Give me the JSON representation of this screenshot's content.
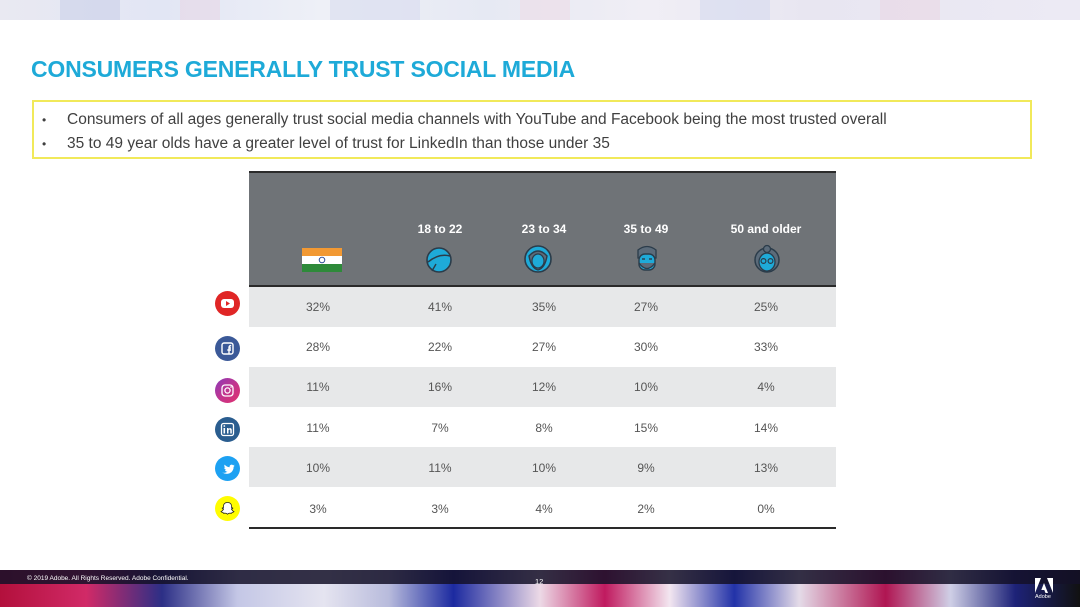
{
  "title": "CONSUMERS GENERALLY TRUST SOCIAL MEDIA",
  "bullets": [
    "Consumers of all ages generally trust social media channels with YouTube and Facebook being the most trusted overall",
    "35 to 49 year olds have a greater level of trust for LinkedIn than those under 35"
  ],
  "bullet_symbol": "•",
  "table": {
    "columns": [
      "18 to 22",
      "23 to 34",
      "35 to 49",
      "50 and older"
    ],
    "first_column_icon": "india-flag-icon",
    "column_icons": [
      "young-person-icon",
      "woman-icon",
      "bearded-man-icon",
      "older-person-icon"
    ],
    "rows": [
      {
        "platform_icon": "youtube-icon",
        "color": "#e02626",
        "values": [
          "32%",
          "41%",
          "35%",
          "27%",
          "25%"
        ]
      },
      {
        "platform_icon": "facebook-icon",
        "color": "#3b5998",
        "values": [
          "28%",
          "22%",
          "27%",
          "30%",
          "33%"
        ]
      },
      {
        "platform_icon": "instagram-icon",
        "color": "#c1358f",
        "values": [
          "11%",
          "16%",
          "12%",
          "10%",
          "4%"
        ]
      },
      {
        "platform_icon": "linkedin-icon",
        "color": "#2a5d8f",
        "values": [
          "11%",
          "7%",
          "8%",
          "15%",
          "14%"
        ]
      },
      {
        "platform_icon": "twitter-icon",
        "color": "#1da1f2",
        "values": [
          "10%",
          "11%",
          "10%",
          "9%",
          "13%"
        ]
      },
      {
        "platform_icon": "snapchat-icon",
        "color": "#fffc00",
        "values": [
          "3%",
          "3%",
          "4%",
          "2%",
          "0%"
        ]
      }
    ]
  },
  "footer": {
    "copyright": "© 2019 Adobe. All Rights Reserved. Adobe Confidential.",
    "page_number": "12",
    "logo_text": "Adobe"
  },
  "colors": {
    "title": "#1eaad8",
    "callout_border": "#f1e95a",
    "header_bg": "#6f7377",
    "row_shade": "#e7e8e9"
  }
}
